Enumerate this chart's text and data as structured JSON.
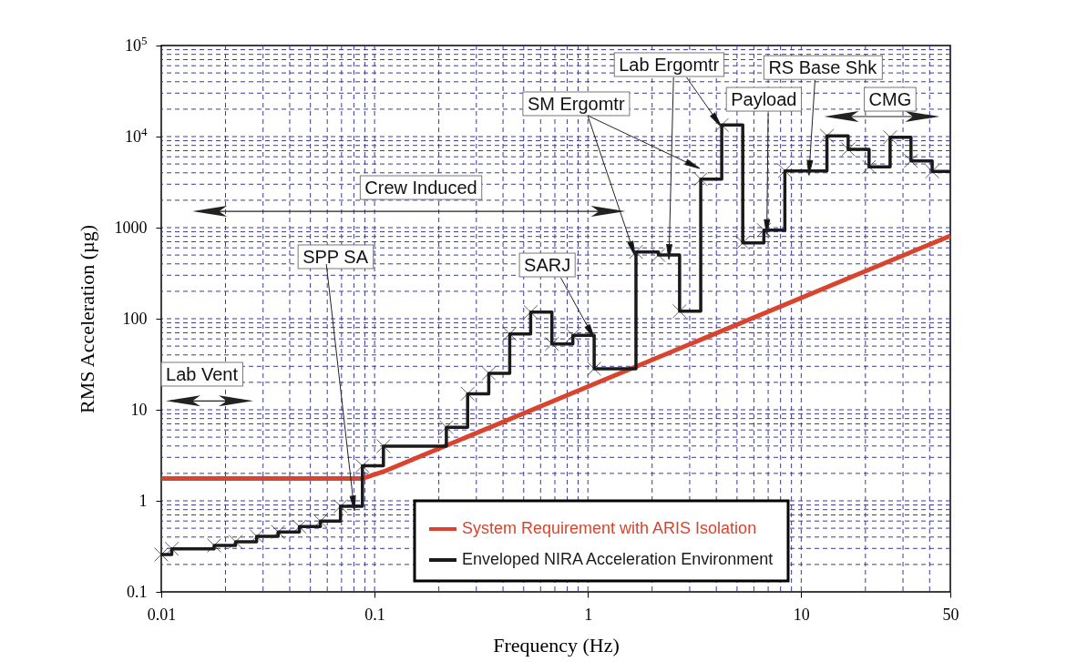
{
  "chart_data": {
    "type": "line",
    "xlabel": "Frequency (Hz)",
    "ylabel": "RMS Acceleration (µg)",
    "log": "xy",
    "grid": true,
    "legend": "bottom right",
    "xlim": [
      0.01,
      50
    ],
    "xticks": [
      0.01,
      0.1,
      1,
      10,
      50
    ],
    "ylim": [
      0.1,
      100000
    ],
    "yticks": [
      0.1,
      1,
      10,
      100,
      1000,
      {
        "value": 10000,
        "label": "10$^{4}$"
      },
      {
        "value": 100000,
        "label": "10$^{5}$"
      }
    ],
    "series": [
      {
        "name": "System Requirement with ARIS Isolation",
        "type": "line",
        "color": "#d9442e",
        "x": [
          0.01,
          0.088,
          0.11,
          50
        ],
        "values": [
          1.76,
          1.76,
          2.09,
          813
        ]
      },
      {
        "name": "Enveloped NIRA Acceleration Environment",
        "type": "step",
        "color": "#1a1a1a",
        "marker": "cross",
        "x": [
          0.01,
          0.0112,
          0.0177,
          0.0223,
          0.028,
          0.0353,
          0.0444,
          0.0557,
          0.0692,
          0.0877,
          0.11,
          0.217,
          0.273,
          0.343,
          0.43,
          0.539,
          0.678,
          0.85,
          1.07,
          1.68,
          2.14,
          2.69,
          3.38,
          4.24,
          5.32,
          6.68,
          8.38,
          13.2,
          16.6,
          20.8,
          26.1,
          32.7,
          41.1,
          50
        ],
        "values": [
          0.257,
          0.297,
          0.324,
          0.355,
          0.407,
          0.454,
          0.521,
          0.598,
          0.871,
          2.42,
          3.98,
          6.41,
          15.0,
          25.1,
          68.1,
          118,
          52.8,
          65.6,
          28.2,
          541,
          501,
          121,
          3410,
          13400,
          681,
          940,
          4200,
          10200,
          7240,
          4650,
          9840,
          5410,
          4140,
          4140
        ]
      }
    ],
    "annotations": [
      "Lab Vent",
      {
        "text": "SPP SA",
        "x": 0.08,
        "y": 0.87
      },
      "Crew Induced",
      {
        "text": "SARJ",
        "x": 1.05,
        "y": 66
      },
      {
        "text": "SM Ergomtr",
        "x": 1.64,
        "y": 541
      },
      {
        "text": "Lab Ergomtr",
        "x": 2.4,
        "y": 501
      },
      {
        "text": "Payload",
        "x": 6.9,
        "y": 940
      },
      {
        "text": "RS Base Shk",
        "x": 10.9,
        "y": 4200
      },
      "CMG"
    ]
  }
}
